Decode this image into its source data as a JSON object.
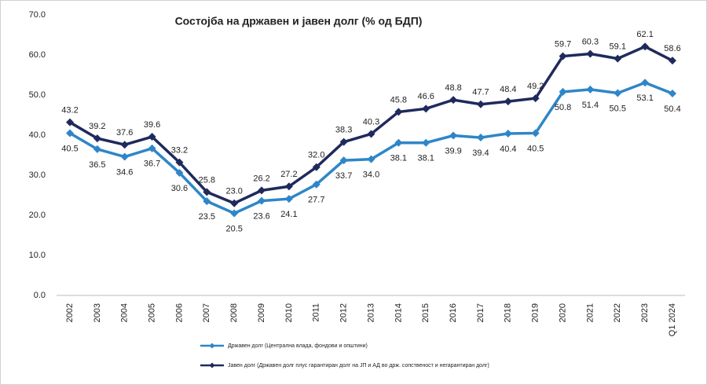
{
  "chart_data": {
    "type": "line",
    "title": "Состојба на државен и јавен долг (% од БДП)",
    "categories": [
      "2002",
      "2003",
      "2004",
      "2005",
      "2006",
      "2007",
      "2008",
      "2009",
      "2010",
      "2011",
      "2012",
      "2013",
      "2014",
      "2015",
      "2016",
      "2017",
      "2018",
      "2019",
      "2020",
      "2021",
      "2022",
      "2023",
      "Q1 2024"
    ],
    "series": [
      {
        "name": "Државен долг (Централна влада, фондови и општини)",
        "color": "#2e86c8",
        "values": [
          40.5,
          36.5,
          34.6,
          36.7,
          30.6,
          23.5,
          20.5,
          23.6,
          24.1,
          27.7,
          33.7,
          34.0,
          38.1,
          38.1,
          39.9,
          39.4,
          40.4,
          40.5,
          50.8,
          51.4,
          50.5,
          53.1,
          50.4
        ],
        "value_labels": [
          "40.5",
          "36.5",
          "34.6",
          "36.7",
          "30.6",
          "23.5",
          "20.5",
          "23.6",
          "24.1",
          "27.7",
          "33.7",
          "34.0",
          "38.1",
          "38.1",
          "39.9",
          "39.4",
          "40.4",
          "40.5",
          "50.8",
          "51.4",
          "50.5",
          "53.1",
          "50.4"
        ]
      },
      {
        "name": "Јавен долг (Државен долг плус гарантиран долг на ЈП и АД во држ. сопственост и негарантиран долг)",
        "color": "#1f2a5c",
        "values": [
          43.2,
          39.2,
          37.6,
          39.6,
          33.2,
          25.8,
          23.0,
          26.2,
          27.2,
          32.0,
          38.3,
          40.3,
          45.8,
          46.6,
          48.8,
          47.7,
          48.4,
          49.2,
          59.7,
          60.3,
          59.1,
          62.1,
          58.6
        ],
        "value_labels": [
          "43.2",
          "39.2",
          "37.6",
          "39.6",
          "33.2",
          "25.8",
          "23.0",
          "26.2",
          "27.2",
          "32.0",
          "38.3",
          "40.3",
          "45.8",
          "46.6",
          "48.8",
          "47.7",
          "48.4",
          "49.2",
          "59.7",
          "60.3",
          "59.1",
          "62.1",
          "58.6"
        ]
      }
    ],
    "ylim": [
      0,
      70
    ],
    "yticks": [
      {
        "value": 0,
        "label": "0.0"
      },
      {
        "value": 10,
        "label": "10.0"
      },
      {
        "value": 20,
        "label": "20.0"
      },
      {
        "value": 30,
        "label": "30.0"
      },
      {
        "value": 40,
        "label": "40.0"
      },
      {
        "value": 50,
        "label": "50.0"
      },
      {
        "value": 60,
        "label": "60.0"
      },
      {
        "value": 70,
        "label": "70.0"
      }
    ],
    "grid": false
  }
}
